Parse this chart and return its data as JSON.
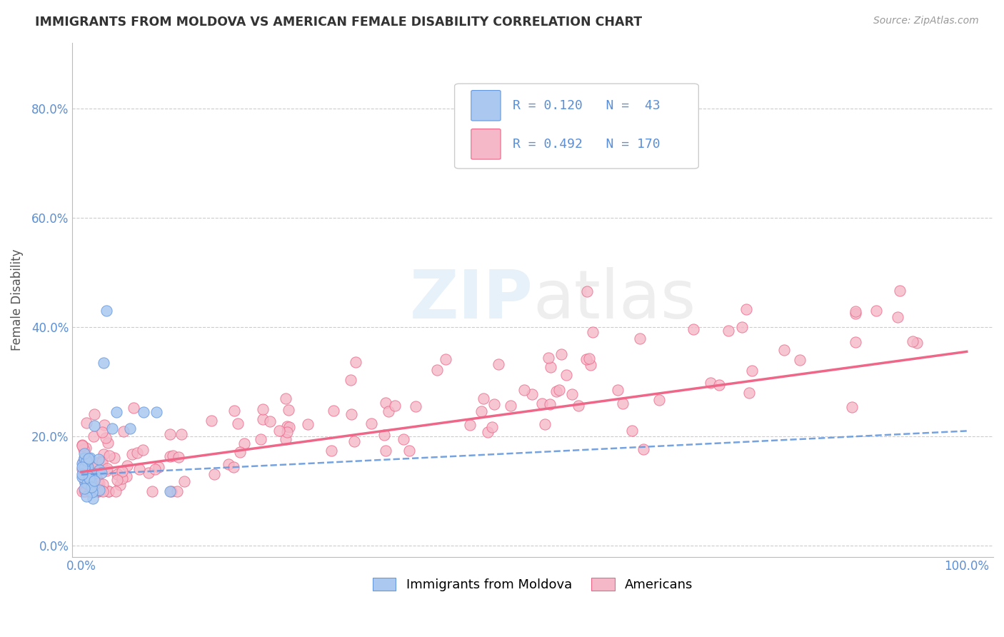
{
  "title": "IMMIGRANTS FROM MOLDOVA VS AMERICAN FEMALE DISABILITY CORRELATION CHART",
  "source": "Source: ZipAtlas.com",
  "ylabel": "Female Disability",
  "xlabel": "",
  "blue_R": 0.12,
  "blue_N": 43,
  "pink_R": 0.492,
  "pink_N": 170,
  "blue_color": "#aac8f0",
  "pink_color": "#f5b8c8",
  "blue_line_color": "#6699dd",
  "pink_line_color": "#ee6688",
  "legend_label_blue": "Immigrants from Moldova",
  "legend_label_pink": "Americans",
  "watermark": "ZIPAtlas",
  "background_color": "#ffffff",
  "grid_color": "#cccccc",
  "title_color": "#333333",
  "axis_label_color": "#5b8fd6",
  "ylabel_color": "#555555"
}
